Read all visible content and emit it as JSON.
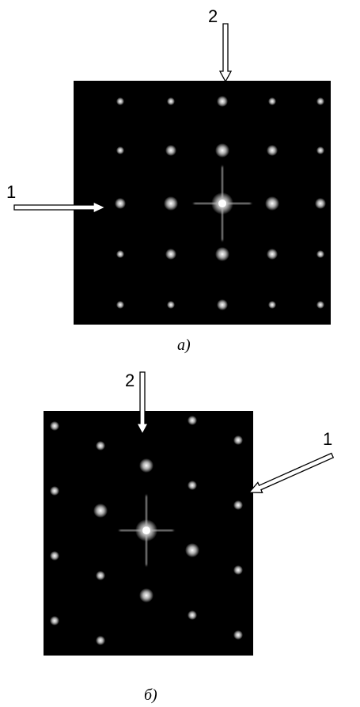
{
  "panels": [
    {
      "caption": "a)",
      "arrow_labels": [
        "1",
        "2"
      ]
    },
    {
      "caption": "б)",
      "arrow_labels": [
        "1",
        "2"
      ]
    }
  ]
}
